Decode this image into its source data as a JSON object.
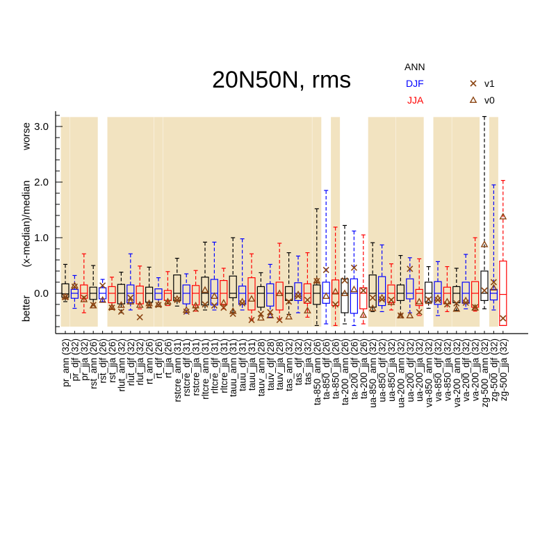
{
  "chart_data": {
    "type": "boxplot",
    "title": "20N50N, rms",
    "ylabel": "(x-median)/median",
    "ylabel_low": "better",
    "ylabel_high": "worse",
    "yticks": [
      "0.0",
      "1.0",
      "2.0",
      "3.0"
    ],
    "ytick_values": [
      0,
      1,
      2,
      3
    ],
    "ylim": [
      -0.72,
      3.3
    ],
    "legend_seasons": [
      {
        "label": "ANN",
        "color": "#000000"
      },
      {
        "label": "DJF",
        "color": "#0000ff"
      },
      {
        "label": "JJA",
        "color": "#ff0000"
      }
    ],
    "legend_markers": [
      {
        "label": "v1",
        "marker": "x",
        "color": "#8b4513"
      },
      {
        "label": "v0",
        "marker": "triangle",
        "color": "#8b4513"
      }
    ],
    "shade_color": "#f2e3c0",
    "shaded_groups": [
      0,
      1,
      3,
      4,
      5,
      6,
      8,
      10,
      11,
      13,
      14,
      16,
      18
    ],
    "variables": [
      {
        "label": "pr_ann (32)",
        "season": "ANN",
        "group": 0,
        "wlo": -0.15,
        "q1": -0.07,
        "med": -0.01,
        "q3": 0.17,
        "whi": 0.52,
        "v1": -0.07,
        "v0": -0.06
      },
      {
        "label": "pr_djf (32)",
        "season": "DJF",
        "group": 1,
        "wlo": -0.27,
        "q1": -0.09,
        "med": 0.0,
        "q3": 0.07,
        "whi": 0.32,
        "v1": 0.12,
        "v0": 0.14
      },
      {
        "label": "pr_jja (32)",
        "season": "JJA",
        "group": 1,
        "wlo": -0.35,
        "q1": -0.09,
        "med": 0.0,
        "q3": 0.15,
        "whi": 0.71,
        "v1": -0.08,
        "v0": -0.11
      },
      {
        "label": "rst_ann (26)",
        "season": "ANN",
        "group": 1,
        "wlo": -0.22,
        "q1": -0.11,
        "med": 0.0,
        "q3": 0.11,
        "whi": 0.5,
        "v1": -0.21,
        "v0": -0.22
      },
      {
        "label": "rst_djf (26)",
        "season": "DJF",
        "group": 2,
        "wlo": -0.15,
        "q1": -0.1,
        "med": 0.0,
        "q3": 0.1,
        "whi": 0.25,
        "v1": 0.14,
        "v0": -0.12
      },
      {
        "label": "rst_jja (26)",
        "season": "JJA",
        "group": 3,
        "wlo": -0.29,
        "q1": -0.17,
        "med": 0.0,
        "q3": 0.12,
        "whi": 0.29,
        "v1": -0.26,
        "v0": -0.25
      },
      {
        "label": "rlut_ann (32)",
        "season": "ANN",
        "group": 3,
        "wlo": -0.35,
        "q1": -0.19,
        "med": 0.0,
        "q3": 0.16,
        "whi": 0.38,
        "v1": -0.33,
        "v0": -0.21
      },
      {
        "label": "rlut_djf (32)",
        "season": "DJF",
        "group": 3,
        "wlo": -0.3,
        "q1": -0.17,
        "med": 0.0,
        "q3": 0.15,
        "whi": 0.71,
        "v1": -0.08,
        "v0": -0.15
      },
      {
        "label": "rlut_jja (32)",
        "season": "JJA",
        "group": 3,
        "wlo": -0.28,
        "q1": -0.19,
        "med": 0.0,
        "q3": 0.13,
        "whi": 0.49,
        "v1": -0.43,
        "v0": -0.21
      },
      {
        "label": "rt_ann (26)",
        "season": "ANN",
        "group": 3,
        "wlo": -0.26,
        "q1": -0.16,
        "med": 0.0,
        "q3": 0.11,
        "whi": 0.47,
        "v1": -0.22,
        "v0": -0.18
      },
      {
        "label": "rt_djf (26)",
        "season": "DJF",
        "group": 4,
        "wlo": -0.2,
        "q1": -0.11,
        "med": 0.0,
        "q3": 0.08,
        "whi": 0.28,
        "v1": -0.21,
        "v0": -0.2
      },
      {
        "label": "rt_jja (26)",
        "season": "JJA",
        "group": 5,
        "wlo": -0.22,
        "q1": -0.13,
        "med": 0.0,
        "q3": 0.05,
        "whi": 0.39,
        "v1": -0.17,
        "v0": -0.15
      },
      {
        "label": "rstcre_ann (31)",
        "season": "ANN",
        "group": 5,
        "wlo": -0.23,
        "q1": -0.13,
        "med": 0.0,
        "q3": 0.33,
        "whi": 0.63,
        "v1": -0.12,
        "v0": -0.1
      },
      {
        "label": "rstcre_djf (31)",
        "season": "DJF",
        "group": 5,
        "wlo": -0.36,
        "q1": -0.19,
        "med": 0.0,
        "q3": 0.15,
        "whi": 0.35,
        "v1": -0.33,
        "v0": -0.3
      },
      {
        "label": "rstcre_jja (31)",
        "season": "JJA",
        "group": 5,
        "wlo": -0.32,
        "q1": -0.21,
        "med": 0.0,
        "q3": 0.14,
        "whi": 0.41,
        "v1": -0.28,
        "v0": -0.22
      },
      {
        "label": "rltcre_ann (31)",
        "season": "ANN",
        "group": 5,
        "wlo": -0.3,
        "q1": -0.21,
        "med": 0.0,
        "q3": 0.29,
        "whi": 0.92,
        "v1": -0.2,
        "v0": 0.06
      },
      {
        "label": "rltcre_djf (31)",
        "season": "DJF",
        "group": 5,
        "wlo": -0.3,
        "q1": -0.21,
        "med": 0.0,
        "q3": 0.25,
        "whi": 0.92,
        "v1": -0.22,
        "v0": -0.05
      },
      {
        "label": "rltcre_jja (31)",
        "season": "JJA",
        "group": 5,
        "wlo": -0.28,
        "q1": -0.2,
        "med": 0.0,
        "q3": 0.23,
        "whi": 0.45,
        "v1": -0.26,
        "v0": -0.17
      },
      {
        "label": "tauu_ann (31)",
        "season": "ANN",
        "group": 5,
        "wlo": -0.35,
        "q1": -0.08,
        "med": 0.0,
        "q3": 0.31,
        "whi": 1.0,
        "v1": -0.37,
        "v0": -0.32
      },
      {
        "label": "tauu_djf (31)",
        "season": "DJF",
        "group": 5,
        "wlo": -0.3,
        "q1": -0.2,
        "med": 0.0,
        "q3": 0.13,
        "whi": 0.98,
        "v1": -0.18,
        "v0": -0.15
      },
      {
        "label": "tauu_jja (31)",
        "season": "JJA",
        "group": 5,
        "wlo": -0.48,
        "q1": -0.3,
        "med": 0.0,
        "q3": 0.28,
        "whi": 0.71,
        "v1": -0.48,
        "v0": -0.1
      },
      {
        "label": "tauv_ann (28)",
        "season": "ANN",
        "group": 5,
        "wlo": -0.4,
        "q1": -0.25,
        "med": 0.0,
        "q3": 0.12,
        "whi": 0.37,
        "v1": -0.37,
        "v0": -0.44
      },
      {
        "label": "tauv_djf (28)",
        "season": "DJF",
        "group": 5,
        "wlo": -0.43,
        "q1": -0.23,
        "med": 0.0,
        "q3": 0.17,
        "whi": 0.52,
        "v1": -0.34,
        "v0": -0.4
      },
      {
        "label": "tauv_jja (28)",
        "season": "JJA",
        "group": 5,
        "wlo": -0.47,
        "q1": -0.3,
        "med": 0.0,
        "q3": 0.2,
        "whi": 0.9,
        "v1": -0.48,
        "v0": 0.0
      },
      {
        "label": "tas_ann (32)",
        "season": "ANN",
        "group": 5,
        "wlo": -0.38,
        "q1": -0.13,
        "med": 0.0,
        "q3": 0.12,
        "whi": 0.73,
        "v1": -0.15,
        "v0": -0.42
      },
      {
        "label": "tas_djf (32)",
        "season": "DJF",
        "group": 5,
        "wlo": -0.35,
        "q1": -0.13,
        "med": 0.0,
        "q3": 0.19,
        "whi": 0.67,
        "v1": -0.05,
        "v0": -0.02
      },
      {
        "label": "tas_jja (32)",
        "season": "JJA",
        "group": 5,
        "wlo": -0.43,
        "q1": -0.18,
        "med": 0.0,
        "q3": 0.17,
        "whi": 0.73,
        "v1": -0.12,
        "v0": -0.31
      },
      {
        "label": "ta-850_ann (26)",
        "season": "ANN",
        "group": 6,
        "wlo": -0.58,
        "q1": -0.2,
        "med": 0.0,
        "q3": 0.15,
        "whi": 1.52,
        "v1": 0.22,
        "v0": 0.23
      },
      {
        "label": "ta-850_djf (26)",
        "season": "DJF",
        "group": 7,
        "wlo": -0.55,
        "q1": -0.18,
        "med": 0.0,
        "q3": 0.2,
        "whi": 1.85,
        "v1": 0.42,
        "v0": -0.05
      },
      {
        "label": "ta-850_jja (26)",
        "season": "JJA",
        "group": 8,
        "wlo": -0.58,
        "q1": -0.22,
        "med": 0.0,
        "q3": 0.24,
        "whi": 1.19,
        "v1": -0.2,
        "v0": 0.03
      },
      {
        "label": "ta-200_ann (26)",
        "season": "ANN",
        "group": 9,
        "wlo": -0.55,
        "q1": -0.35,
        "med": 0.0,
        "q3": 0.26,
        "whi": 1.22,
        "v1": 0.23,
        "v0": 0.0
      },
      {
        "label": "ta-200_djf (26)",
        "season": "DJF",
        "group": 9,
        "wlo": -0.58,
        "q1": -0.36,
        "med": 0.0,
        "q3": 0.26,
        "whi": 1.12,
        "v1": 0.46,
        "v0": 0.07
      },
      {
        "label": "ta-200_jja (26)",
        "season": "JJA",
        "group": 9,
        "wlo": -0.55,
        "q1": -0.28,
        "med": 0.0,
        "q3": 0.1,
        "whi": 1.05,
        "v1": 0.05,
        "v0": -0.39
      },
      {
        "label": "ua-850_ann (32)",
        "season": "ANN",
        "group": 10,
        "wlo": -0.33,
        "q1": -0.25,
        "med": 0.0,
        "q3": 0.33,
        "whi": 0.91,
        "v1": -0.08,
        "v0": -0.27
      },
      {
        "label": "ua-850_djf (32)",
        "season": "DJF",
        "group": 10,
        "wlo": -0.33,
        "q1": -0.22,
        "med": 0.0,
        "q3": 0.3,
        "whi": 0.87,
        "v1": -0.11,
        "v0": -0.08
      },
      {
        "label": "ua-850_jja (32)",
        "season": "JJA",
        "group": 10,
        "wlo": -0.3,
        "q1": -0.17,
        "med": 0.0,
        "q3": 0.15,
        "whi": 0.53,
        "v1": -0.12,
        "v0": -0.16
      },
      {
        "label": "ua-200_ann (32)",
        "season": "ANN",
        "group": 11,
        "wlo": -0.38,
        "q1": -0.13,
        "med": 0.0,
        "q3": 0.15,
        "whi": 0.68,
        "v1": -0.4,
        "v0": -0.4
      },
      {
        "label": "ua-200_djf (32)",
        "season": "DJF",
        "group": 11,
        "wlo": -0.35,
        "q1": -0.1,
        "med": 0.0,
        "q3": 0.26,
        "whi": 0.64,
        "v1": 0.44,
        "v0": -0.4
      },
      {
        "label": "ua-200_jja (32)",
        "season": "JJA",
        "group": 11,
        "wlo": -0.4,
        "q1": -0.22,
        "med": 0.0,
        "q3": 0.07,
        "whi": 0.62,
        "v1": -0.34,
        "v0": -0.15
      },
      {
        "label": "va-850_ann (32)",
        "season": "ANN",
        "group": 12,
        "wlo": -0.27,
        "q1": -0.16,
        "med": 0.0,
        "q3": 0.2,
        "whi": 0.48,
        "v1": -0.11,
        "v0": -0.14
      },
      {
        "label": "va-850_djf (32)",
        "season": "DJF",
        "group": 13,
        "wlo": -0.4,
        "q1": -0.2,
        "med": 0.0,
        "q3": 0.21,
        "whi": 0.57,
        "v1": -0.12,
        "v0": -0.09
      },
      {
        "label": "va-850_jja (32)",
        "season": "JJA",
        "group": 13,
        "wlo": -0.33,
        "q1": -0.19,
        "med": 0.0,
        "q3": 0.11,
        "whi": 0.48,
        "v1": -0.2,
        "v0": -0.15
      },
      {
        "label": "va-200_ann (32)",
        "season": "ANN",
        "group": 14,
        "wlo": -0.31,
        "q1": -0.17,
        "med": 0.0,
        "q3": 0.12,
        "whi": 0.45,
        "v1": -0.18,
        "v0": -0.28
      },
      {
        "label": "va-200_djf (32)",
        "season": "DJF",
        "group": 14,
        "wlo": -0.28,
        "q1": -0.18,
        "med": 0.0,
        "q3": 0.2,
        "whi": 0.7,
        "v1": -0.17,
        "v0": -0.13
      },
      {
        "label": "va-200_jja (32)",
        "season": "JJA",
        "group": 14,
        "wlo": -0.32,
        "q1": -0.25,
        "med": 0.0,
        "q3": 0.21,
        "whi": 1.0,
        "v1": -0.25,
        "v0": -0.26
      },
      {
        "label": "zg-500_ann (32)",
        "season": "ANN",
        "group": 15,
        "wlo": -0.28,
        "q1": -0.13,
        "med": 0.0,
        "q3": 0.4,
        "whi": 3.18,
        "v1": 0.05,
        "v0": 0.88
      },
      {
        "label": "zg-500_djf (32)",
        "season": "DJF",
        "group": 16,
        "wlo": -0.3,
        "q1": -0.12,
        "med": 0.0,
        "q3": 0.07,
        "whi": 1.95,
        "v1": 0.2,
        "v0": 0.1
      },
      {
        "label": "zg-500_jja (32)",
        "season": "JJA",
        "group": 17,
        "wlo": -0.58,
        "q1": -0.58,
        "med": -0.02,
        "q3": 0.58,
        "whi": 2.03,
        "v1": -0.45,
        "v0": 1.38
      }
    ]
  }
}
